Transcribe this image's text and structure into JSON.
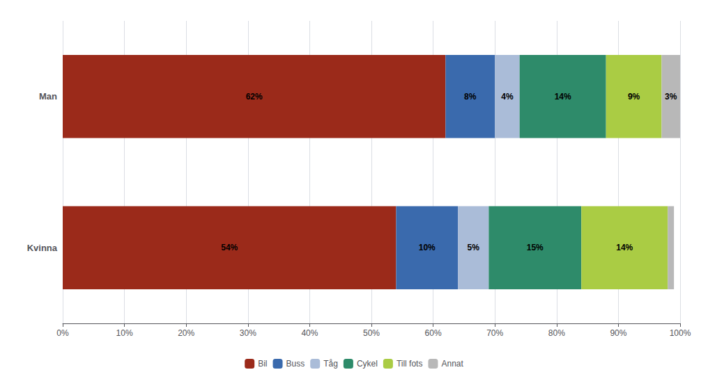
{
  "chart_data": {
    "type": "bar",
    "orientation": "horizontal",
    "stacked": true,
    "categories": [
      "Man",
      "Kvinna"
    ],
    "series": [
      {
        "name": "Bil",
        "color": "#9B2A1A",
        "values": [
          62,
          54
        ],
        "value_labels": [
          "62%",
          "54%"
        ]
      },
      {
        "name": "Buss",
        "color": "#3A6AAD",
        "values": [
          8,
          10
        ],
        "value_labels": [
          "8%",
          "10%"
        ]
      },
      {
        "name": "Tåg",
        "color": "#AABCD8",
        "values": [
          4,
          5
        ],
        "value_labels": [
          "4%",
          "5%"
        ]
      },
      {
        "name": "Cykel",
        "color": "#2E8B6A",
        "values": [
          14,
          15
        ],
        "value_labels": [
          "14%",
          "15%"
        ]
      },
      {
        "name": "Till fots",
        "color": "#AACC44",
        "values": [
          9,
          14
        ],
        "value_labels": [
          "9%",
          "14%"
        ]
      },
      {
        "name": "Annat",
        "color": "#B8B8B8",
        "values": [
          3,
          1
        ],
        "value_labels": [
          "3%",
          null
        ]
      }
    ],
    "xlim": [
      0,
      100
    ],
    "xticks": [
      {
        "value": 0,
        "label": "0%"
      },
      {
        "value": 10,
        "label": "10%"
      },
      {
        "value": 20,
        "label": "20%"
      },
      {
        "value": 30,
        "label": "30%"
      },
      {
        "value": 40,
        "label": "40%"
      },
      {
        "value": 50,
        "label": "50%"
      },
      {
        "value": 60,
        "label": "60%"
      },
      {
        "value": 70,
        "label": "70%"
      },
      {
        "value": 80,
        "label": "80%"
      },
      {
        "value": 90,
        "label": "90%"
      },
      {
        "value": 100,
        "label": "100%"
      }
    ],
    "grid": true,
    "legend": "bottom",
    "data_labels": true
  }
}
